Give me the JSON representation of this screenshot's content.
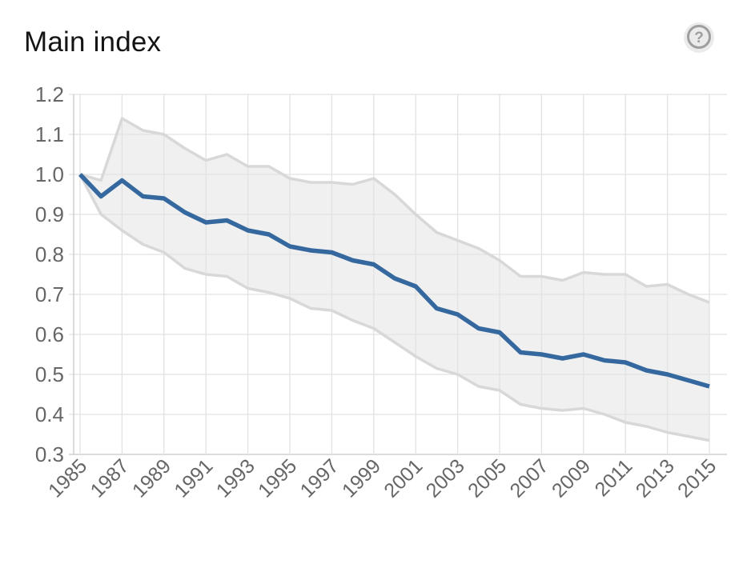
{
  "header": {
    "title": "Main index",
    "help_label": "?"
  },
  "colors": {
    "title_text": "#141414",
    "line": "#35689e",
    "band_fill": "#f0f0f0",
    "band_edge": "#d8d8d8",
    "grid": "#e2e2e2",
    "axis": "#c8c8c8",
    "tick_text": "#666666",
    "help_icon": "#9e9e9e",
    "help_badge": "#ebebeb"
  },
  "chart_data": {
    "type": "line",
    "title": "Main index",
    "xlabel": "",
    "ylabel": "",
    "x": [
      1985,
      1986,
      1987,
      1988,
      1989,
      1990,
      1991,
      1992,
      1993,
      1994,
      1995,
      1996,
      1997,
      1998,
      1999,
      2000,
      2001,
      2002,
      2003,
      2004,
      2005,
      2006,
      2007,
      2008,
      2009,
      2010,
      2011,
      2012,
      2013,
      2014,
      2015
    ],
    "series": [
      {
        "name": "main-index",
        "values": [
          1.0,
          0.945,
          0.985,
          0.945,
          0.94,
          0.905,
          0.88,
          0.885,
          0.86,
          0.85,
          0.82,
          0.81,
          0.805,
          0.785,
          0.775,
          0.74,
          0.72,
          0.665,
          0.65,
          0.615,
          0.605,
          0.555,
          0.55,
          0.54,
          0.55,
          0.535,
          0.53,
          0.51,
          0.5,
          0.485,
          0.47
        ]
      },
      {
        "name": "upper-band",
        "values": [
          1.0,
          0.985,
          1.14,
          1.11,
          1.1,
          1.065,
          1.035,
          1.05,
          1.02,
          1.02,
          0.99,
          0.98,
          0.98,
          0.975,
          0.99,
          0.95,
          0.9,
          0.855,
          0.835,
          0.815,
          0.785,
          0.745,
          0.745,
          0.735,
          0.755,
          0.75,
          0.75,
          0.72,
          0.725,
          0.7,
          0.68
        ]
      },
      {
        "name": "lower-band",
        "values": [
          1.0,
          0.9,
          0.86,
          0.825,
          0.805,
          0.765,
          0.75,
          0.745,
          0.715,
          0.705,
          0.69,
          0.665,
          0.66,
          0.635,
          0.615,
          0.58,
          0.545,
          0.515,
          0.5,
          0.47,
          0.46,
          0.425,
          0.415,
          0.41,
          0.415,
          0.4,
          0.38,
          0.37,
          0.355,
          0.345,
          0.335
        ]
      }
    ],
    "band": {
      "upper": "upper-band",
      "lower": "lower-band"
    },
    "ylim": [
      0.3,
      1.2
    ],
    "yticks": [
      "1.2",
      "1.1",
      "1.0",
      "0.9",
      "0.8",
      "0.7",
      "0.6",
      "0.5",
      "0.4",
      "0.3"
    ],
    "xticks": [
      1985,
      1987,
      1989,
      1991,
      1993,
      1995,
      1997,
      1999,
      2001,
      2003,
      2005,
      2007,
      2009,
      2011,
      2013,
      2015
    ],
    "grid": true,
    "legend": false
  }
}
